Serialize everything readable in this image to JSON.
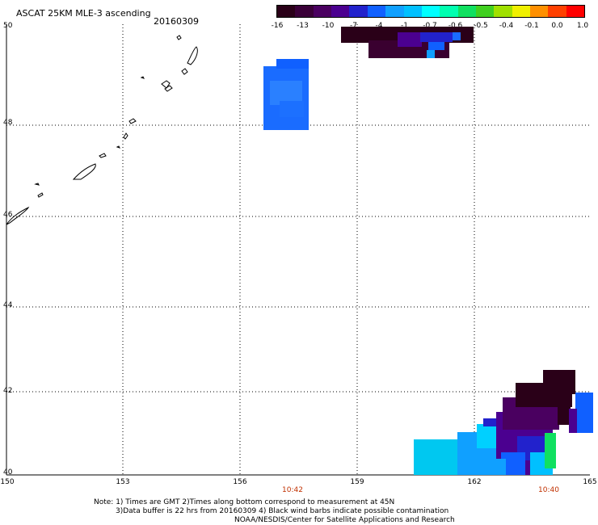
{
  "title": "ASCAT 25KM MLE-3 ascending",
  "date": "20160309",
  "colorbar": {
    "colors": [
      "#2a0018",
      "#3a0038",
      "#4a0060",
      "#4b0090",
      "#2222cc",
      "#1060ff",
      "#10a0ff",
      "#00c0ff",
      "#00ffff",
      "#00ffb0",
      "#10e060",
      "#40d020",
      "#a0e000",
      "#f0f000",
      "#ff9000",
      "#ff4000",
      "#ff0000"
    ],
    "ticks": [
      "-16",
      "-13",
      "-10",
      "-7",
      "-4",
      "-1",
      "-0.7",
      "-0.6",
      "-0.5",
      "-0.4",
      "-0.1",
      "0.0",
      "1.0"
    ]
  },
  "axes": {
    "lat_ticks": [
      "50",
      "48",
      "46",
      "44",
      "42",
      "40"
    ],
    "lon_ticks": [
      "150",
      "153",
      "156",
      "159",
      "162",
      "165"
    ]
  },
  "times": [
    "10:42",
    "10:40"
  ],
  "notes": [
    "Note: 1) Times are GMT 2)Times along bottom correspond to measurement at 45N",
    "3)Data buffer is 22 hrs from 20160309 4) Black wind barbs indicate possible contamination",
    "NOAA/NESDIS/Center for Satellite Applications and Research"
  ]
}
